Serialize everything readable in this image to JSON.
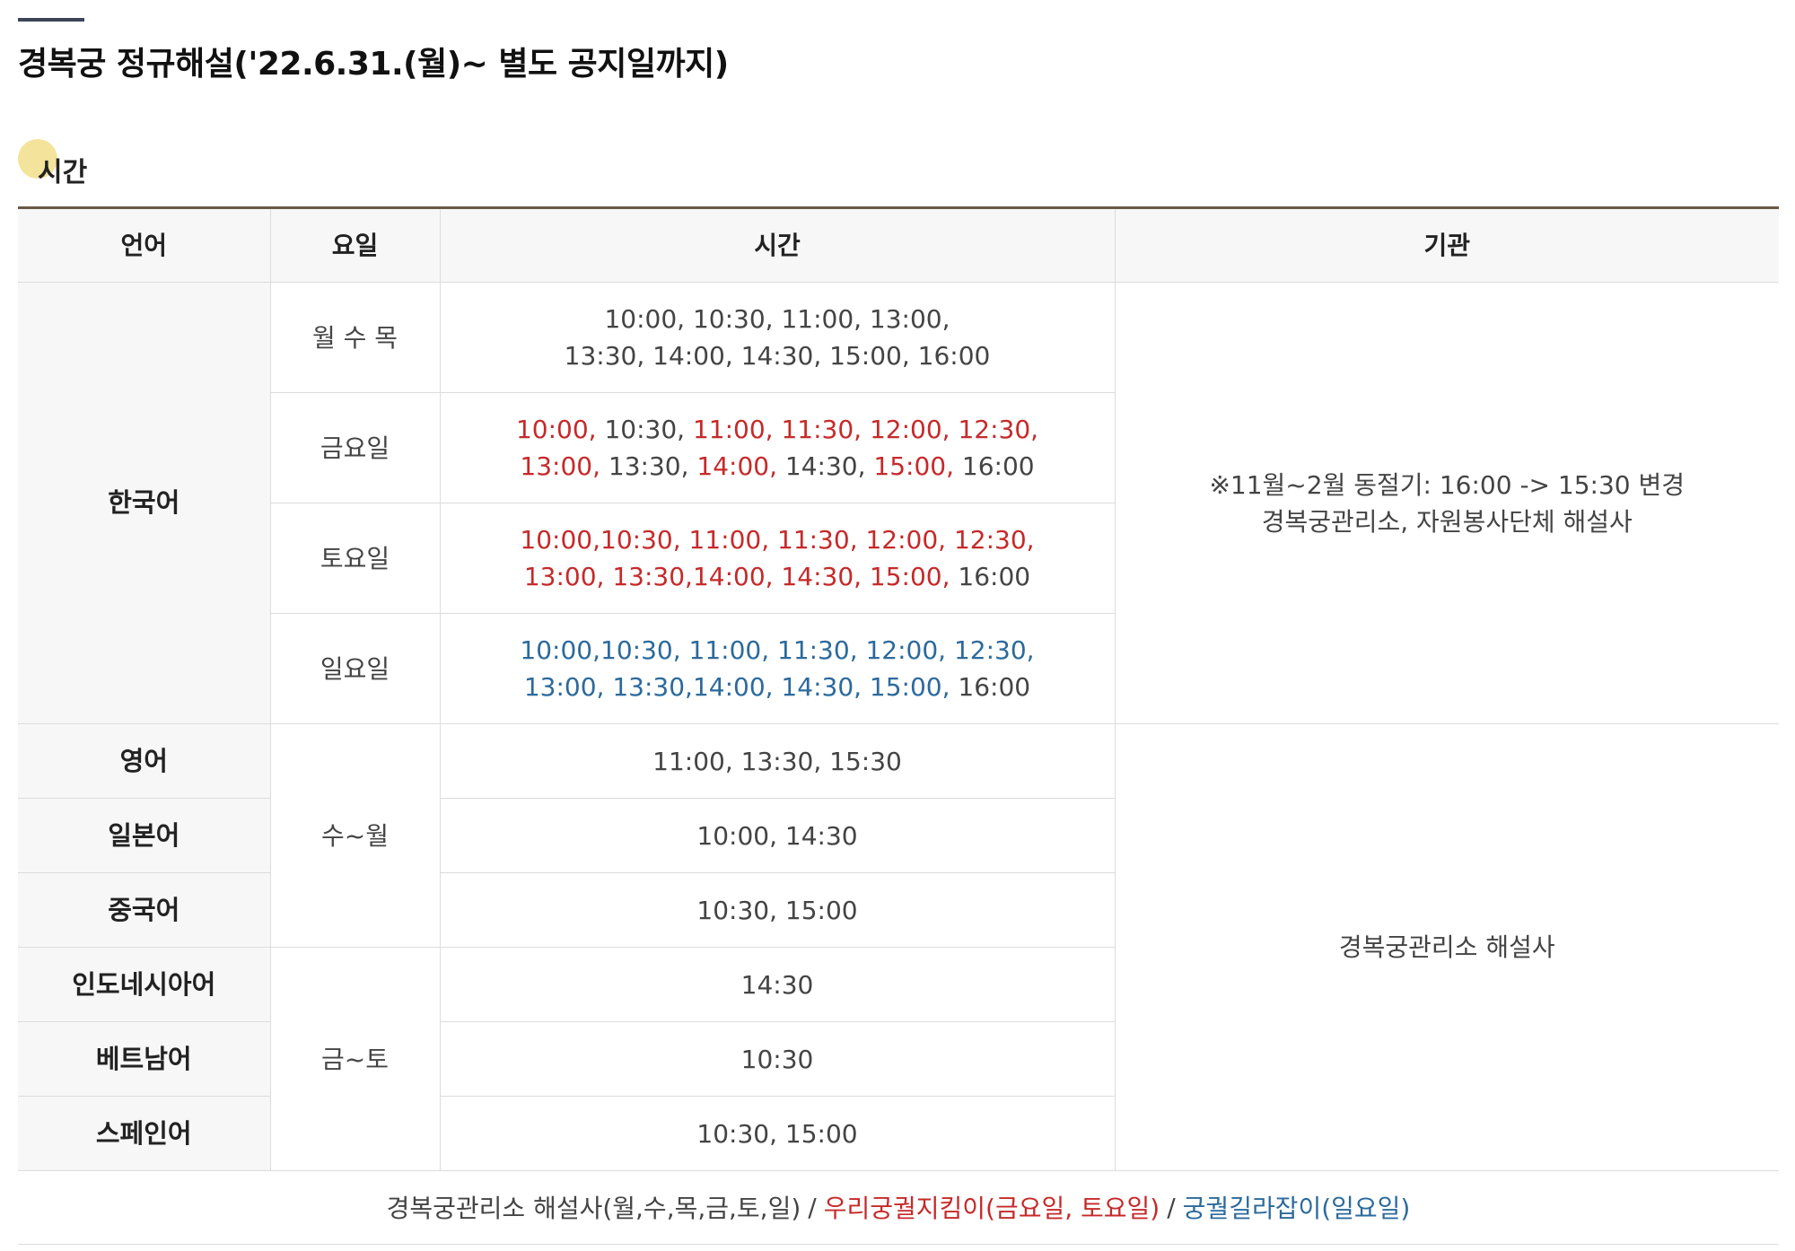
{
  "page": {
    "title": "경복궁 정규해설('22.6.31.(월)~ 별도 공지일까지)",
    "section_title": "시간"
  },
  "colors": {
    "red": "#c62a2a",
    "blue": "#2c6a9c",
    "header_rule": "#6b5845",
    "accent_dot": "#f2df8a"
  },
  "table": {
    "headers": [
      "언어",
      "요일",
      "시간",
      "기관"
    ],
    "korean": {
      "language": "한국어",
      "agency_lines": [
        "※11월~2월 동절기: 16:00 -> 15:30 변경",
        "경복궁관리소, 자원봉사단체 해설사"
      ],
      "rows": [
        {
          "day": "월 수 목",
          "lines": [
            [
              {
                "t": "10:00, 10:30, 11:00, 13:00,",
                "c": "gray"
              }
            ],
            [
              {
                "t": "13:30, 14:00, 14:30, 15:00, 16:00",
                "c": "gray"
              }
            ]
          ]
        },
        {
          "day": "금요일",
          "lines": [
            [
              {
                "t": "10:00,",
                "c": "red"
              },
              {
                "t": " 10:30,",
                "c": "gray"
              },
              {
                "t": " 11:00, 11:30, 12:00, 12:30,",
                "c": "red"
              }
            ],
            [
              {
                "t": "13:00,",
                "c": "red"
              },
              {
                "t": " 13:30,",
                "c": "gray"
              },
              {
                "t": " 14:00,",
                "c": "red"
              },
              {
                "t": " 14:30,",
                "c": "gray"
              },
              {
                "t": " 15:00,",
                "c": "red"
              },
              {
                "t": " 16:00",
                "c": "gray"
              }
            ]
          ]
        },
        {
          "day": "토요일",
          "lines": [
            [
              {
                "t": "10:00,10:30, 11:00, 11:30, 12:00, 12:30,",
                "c": "red"
              }
            ],
            [
              {
                "t": "13:00, 13:30,14:00, 14:30, 15:00,",
                "c": "red"
              },
              {
                "t": " 16:00",
                "c": "gray"
              }
            ]
          ]
        },
        {
          "day": "일요일",
          "lines": [
            [
              {
                "t": "10:00,10:30, 11:00, 11:30, 12:00, 12:30,",
                "c": "blue"
              }
            ],
            [
              {
                "t": "13:00, 13:30,14:00, 14:30, 15:00,",
                "c": "blue"
              },
              {
                "t": " 16:00",
                "c": "gray"
              }
            ]
          ]
        }
      ]
    },
    "foreign": {
      "agency": "경복궁관리소 해설사",
      "groups": [
        {
          "day": "수~월",
          "rows": [
            {
              "language": "영어",
              "times": "11:00, 13:30, 15:30"
            },
            {
              "language": "일본어",
              "times": "10:00, 14:30"
            },
            {
              "language": "중국어",
              "times": "10:30, 15:00"
            }
          ]
        },
        {
          "day": "금~토",
          "rows": [
            {
              "language": "인도네시아어",
              "times": "14:30"
            },
            {
              "language": "베트남어",
              "times": "10:30"
            },
            {
              "language": "스페인어",
              "times": "10:30, 15:00"
            }
          ]
        }
      ]
    }
  },
  "footnote": {
    "part1": "경복궁관리소 해설사(월,수,목,금,토,일)",
    "sep": "/",
    "part2": "우리궁궐지킴이(금요일, 토요일)",
    "part3": "궁궐길라잡이(일요일)"
  }
}
